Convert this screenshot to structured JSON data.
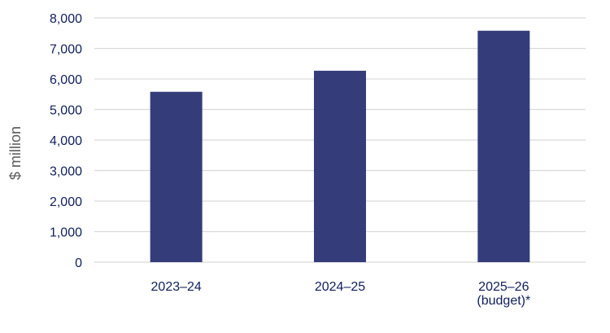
{
  "chart_data": {
    "type": "bar",
    "title": "",
    "xlabel": "",
    "ylabel": "$ million",
    "categories": [
      [
        "2023–24"
      ],
      [
        "2024–25"
      ],
      [
        "2025–26",
        "(budget)*"
      ]
    ],
    "values": [
      5580,
      6270,
      7580
    ],
    "ylim": [
      0,
      8000
    ],
    "yticks": [
      0,
      1000,
      2000,
      3000,
      4000,
      5000,
      6000,
      7000,
      8000
    ],
    "ytick_labels": [
      "0",
      "1,000",
      "2,000",
      "3,000",
      "4,000",
      "5,000",
      "6,000",
      "7,000",
      "8,000"
    ],
    "grid": true,
    "legend": "none",
    "colors": {
      "bar": "#343d7a",
      "text": "#0f1f5c",
      "axis_title": "#595959",
      "grid": "#d9d9d9"
    }
  }
}
